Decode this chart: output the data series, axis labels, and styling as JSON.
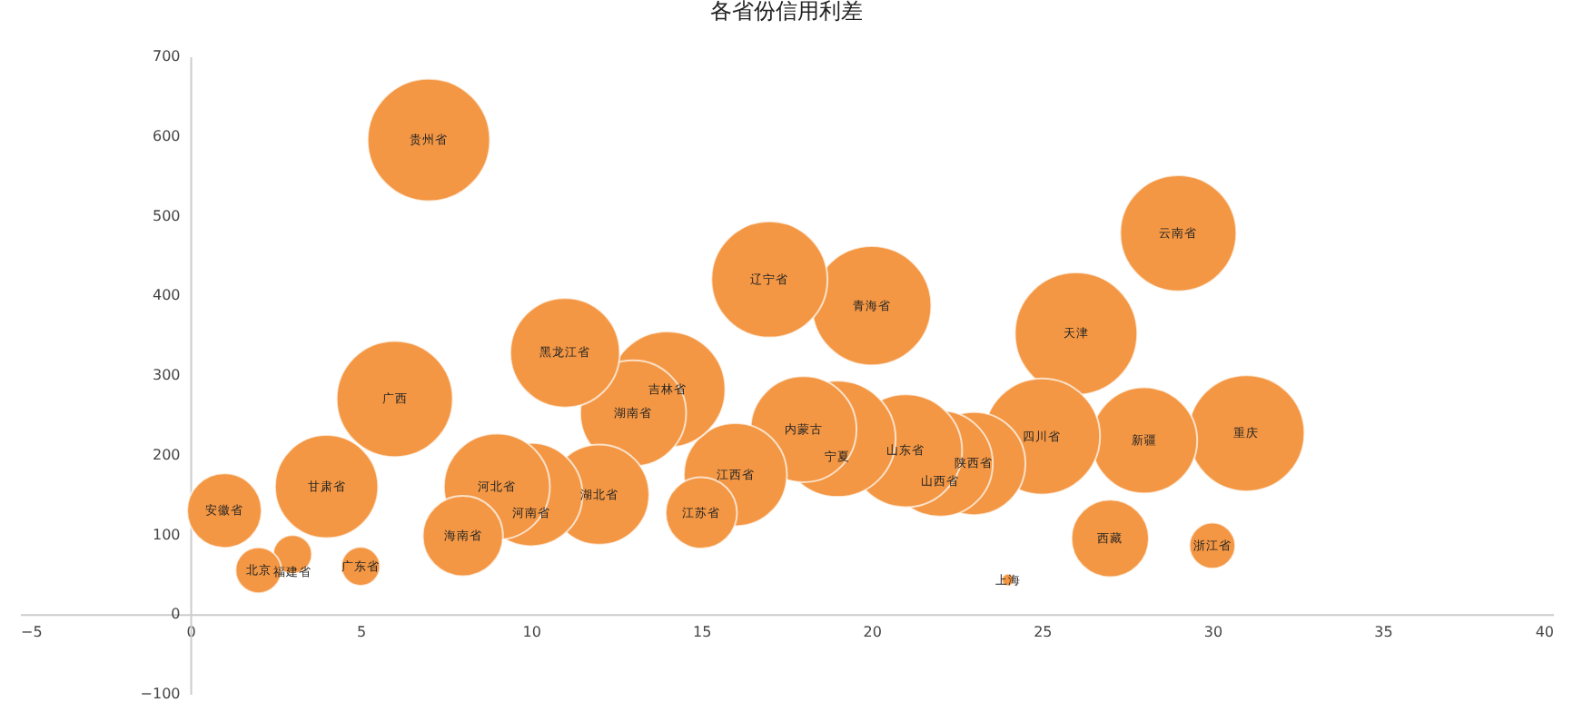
{
  "chart_data": {
    "type": "bubble",
    "title": "各省份信用利差",
    "x": [
      1,
      2,
      3,
      4,
      5,
      6,
      7,
      8,
      9,
      10,
      11,
      12,
      13,
      14,
      15,
      16,
      17,
      18,
      19,
      20,
      21,
      22,
      23,
      24,
      25,
      26,
      27,
      28,
      29,
      30,
      31
    ],
    "series": [
      {
        "color": "#f39744",
        "values": [
          130,
          55,
          75,
          160,
          60,
          270,
          595,
          98,
          160,
          150,
          328,
          150,
          252,
          282,
          127,
          175,
          420,
          232,
          220,
          387,
          205,
          189,
          189,
          43,
          223,
          352,
          95,
          218,
          478,
          86,
          227
        ],
        "sizes": [
          0.37,
          0.14,
          0.1,
          0.71,
          0.1,
          0.9,
          1,
          0.43,
          0.75,
          0.71,
          0.8,
          0.67,
          0.75,
          0.9,
          0.34,
          0.71,
          0.9,
          0.75,
          0.9,
          0.95,
          0.85,
          0.75,
          0.71,
          0.01,
          0.9,
          1,
          0.4,
          0.75,
          0.9,
          0.14,
          0.9
        ],
        "value_labels": [
          "安徽省",
          "北京",
          "福建省",
          "甘肃省",
          "广东省",
          "广西",
          "贵州省",
          "海南省",
          "河北省",
          "河南省",
          "黑龙江省",
          "湖北省",
          "湖南省",
          "吉林省",
          "江苏省",
          "江西省",
          "辽宁省",
          "内蒙古",
          "宁夏",
          "青海省",
          "山东省",
          "山西省",
          "陕西省",
          "上海",
          "四川省",
          "天津",
          "西藏",
          "新疆",
          "云南省",
          "浙江省",
          "重庆"
        ]
      }
    ],
    "xlim": [
      -5,
      40
    ],
    "xticks": [
      -5,
      0,
      5,
      10,
      15,
      20,
      25,
      30,
      35,
      40
    ],
    "ylim": [
      -100,
      700
    ],
    "yticks": [
      -100,
      0,
      100,
      200,
      300,
      400,
      500,
      600,
      700
    ],
    "grid": false,
    "legend": false
  }
}
